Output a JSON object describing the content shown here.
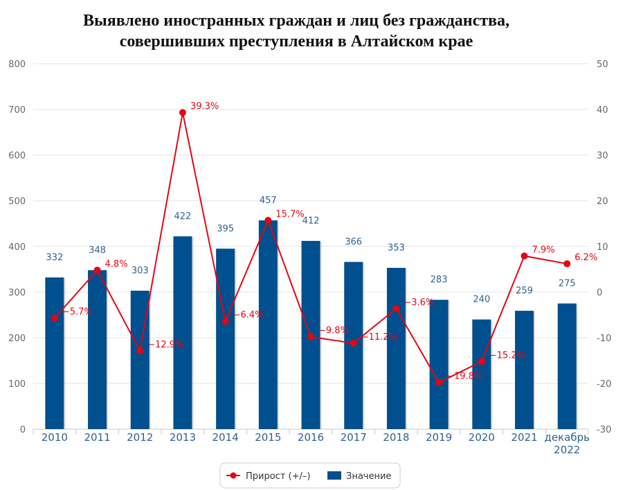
{
  "chart_data": {
    "type": "bar",
    "title_lines": [
      "Выявлено иностранных граждан и лиц без гражданства,",
      "совершивших преступления в Алтайском крае"
    ],
    "categories": [
      [
        "2010"
      ],
      [
        "2011"
      ],
      [
        "2012"
      ],
      [
        "2013"
      ],
      [
        "2014"
      ],
      [
        "2015"
      ],
      [
        "2016"
      ],
      [
        "2017"
      ],
      [
        "2018"
      ],
      [
        "2019"
      ],
      [
        "2020"
      ],
      [
        "2021"
      ],
      [
        "декабрь",
        "2022"
      ]
    ],
    "y_left": {
      "min": 0,
      "max": 800,
      "ticks": [
        0,
        100,
        200,
        300,
        400,
        500,
        600,
        700,
        800
      ]
    },
    "y_right": {
      "min": -30,
      "max": 50,
      "ticks": [
        -30,
        -20,
        -10,
        0,
        10,
        20,
        30,
        40,
        50
      ]
    },
    "grid": true,
    "legend_position": "bottom-center",
    "colors": {
      "bar": "#004f8e",
      "line": "#e30613"
    },
    "series": [
      {
        "name": "Прирост (+/–)",
        "kind": "line",
        "axis": "right",
        "values": [
          -5.7,
          4.8,
          -12.9,
          39.3,
          -6.4,
          15.7,
          -9.8,
          -11.2,
          -3.6,
          -19.8,
          -15.2,
          7.9,
          6.2
        ],
        "labels": [
          "−5.7%",
          "4.8%",
          "−12.9%",
          "39.3%",
          "−6.4%",
          "15.7%",
          "−9.8%",
          "−11.2%",
          "−3.6%",
          "−19.8%",
          "−15.2%",
          "7.9%",
          "6.2%"
        ]
      },
      {
        "name": "Значение",
        "kind": "bar",
        "axis": "left",
        "values": [
          332,
          348,
          303,
          422,
          395,
          457,
          412,
          366,
          353,
          283,
          240,
          259,
          275
        ],
        "labels": [
          "332",
          "348",
          "303",
          "422",
          "395",
          "457",
          "412",
          "366",
          "353",
          "283",
          "240",
          "259",
          "275"
        ]
      }
    ]
  }
}
